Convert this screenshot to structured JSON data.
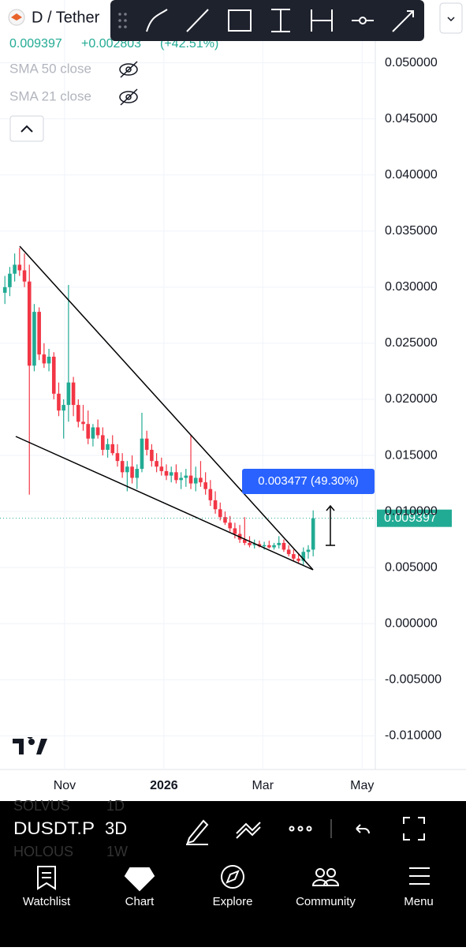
{
  "header": {
    "symbol": "D / Tether",
    "change": "+0.002803",
    "change_pct": "(+42.51%)",
    "indicators": [
      "SMA 50 close",
      "SMA 21 close"
    ]
  },
  "chart_data": {
    "type": "candlestick",
    "last_price": 0.009397,
    "measure_label": "0.003477 (49.30%)",
    "up_color": "#22ab94",
    "down_color": "#f23645",
    "grid": true,
    "ylim": [
      -0.013,
      0.0556
    ],
    "yticks": [
      {
        "value": 0.05,
        "label": "0.050000"
      },
      {
        "value": 0.045,
        "label": "0.045000"
      },
      {
        "value": 0.04,
        "label": "0.040000"
      },
      {
        "value": 0.035,
        "label": "0.035000"
      },
      {
        "value": 0.03,
        "label": "0.030000"
      },
      {
        "value": 0.025,
        "label": "0.025000"
      },
      {
        "value": 0.02,
        "label": "0.020000"
      },
      {
        "value": 0.015,
        "label": "0.015000"
      },
      {
        "value": 0.01,
        "label": "0.010000"
      },
      {
        "value": 0.005,
        "label": "0.005000"
      },
      {
        "value": 0,
        "label": "0.000000"
      },
      {
        "value": -0.005,
        "label": "-0.005000"
      },
      {
        "value": -0.01,
        "label": "-0.010000"
      }
    ],
    "xlim": [
      -1,
      75.7
    ],
    "xticks": [
      {
        "value": 12.2,
        "label": "Nov"
      },
      {
        "value": 32.5,
        "label": "2026"
      },
      {
        "value": 52.7,
        "label": "Mar"
      },
      {
        "value": 73,
        "label": "May"
      }
    ],
    "ohlc": [
      [
        0.0295,
        0.031,
        0.0285,
        0.03
      ],
      [
        0.03,
        0.0318,
        0.0292,
        0.0312
      ],
      [
        0.0312,
        0.033,
        0.0305,
        0.032
      ],
      [
        0.032,
        0.0335,
        0.031,
        0.0315
      ],
      [
        0.0315,
        0.033,
        0.03,
        0.0305
      ],
      [
        0.0305,
        0.032,
        0.0115,
        0.023
      ],
      [
        0.023,
        0.0285,
        0.0225,
        0.0278
      ],
      [
        0.0278,
        0.0282,
        0.0235,
        0.024
      ],
      [
        0.024,
        0.025,
        0.0228,
        0.0232
      ],
      [
        0.0232,
        0.0245,
        0.0225,
        0.0238
      ],
      [
        0.0238,
        0.0242,
        0.02,
        0.0205
      ],
      [
        0.0205,
        0.0215,
        0.0185,
        0.019
      ],
      [
        0.019,
        0.02,
        0.0165,
        0.0195
      ],
      [
        0.0195,
        0.0302,
        0.018,
        0.0215
      ],
      [
        0.0215,
        0.022,
        0.0185,
        0.0195
      ],
      [
        0.0195,
        0.02,
        0.0175,
        0.018
      ],
      [
        0.018,
        0.0195,
        0.0172,
        0.0178
      ],
      [
        0.0178,
        0.019,
        0.016,
        0.0165
      ],
      [
        0.0165,
        0.0178,
        0.0158,
        0.0175
      ],
      [
        0.0175,
        0.0182,
        0.0165,
        0.0168
      ],
      [
        0.0168,
        0.0175,
        0.015,
        0.0155
      ],
      [
        0.0155,
        0.0165,
        0.0148,
        0.016
      ],
      [
        0.016,
        0.0168,
        0.015,
        0.0152
      ],
      [
        0.0152,
        0.016,
        0.014,
        0.0145
      ],
      [
        0.0145,
        0.0152,
        0.013,
        0.0135
      ],
      [
        0.0135,
        0.0145,
        0.0118,
        0.014
      ],
      [
        0.014,
        0.015,
        0.0125,
        0.013
      ],
      [
        0.013,
        0.0142,
        0.012,
        0.0138
      ],
      [
        0.0138,
        0.0188,
        0.0135,
        0.0165
      ],
      [
        0.0165,
        0.0172,
        0.015,
        0.0155
      ],
      [
        0.0155,
        0.016,
        0.014,
        0.0145
      ],
      [
        0.0145,
        0.0152,
        0.0135,
        0.014
      ],
      [
        0.014,
        0.0148,
        0.0132,
        0.0136
      ],
      [
        0.0136,
        0.0142,
        0.0128,
        0.0132
      ],
      [
        0.0132,
        0.014,
        0.0126,
        0.0135
      ],
      [
        0.0135,
        0.0142,
        0.0125,
        0.0128
      ],
      [
        0.0128,
        0.0135,
        0.012,
        0.013
      ],
      [
        0.013,
        0.0138,
        0.0122,
        0.0132
      ],
      [
        0.0132,
        0.0168,
        0.012,
        0.0125
      ],
      [
        0.0125,
        0.014,
        0.0118,
        0.013
      ],
      [
        0.013,
        0.0145,
        0.0122,
        0.0126
      ],
      [
        0.0126,
        0.0135,
        0.0115,
        0.012
      ],
      [
        0.012,
        0.0128,
        0.0105,
        0.011
      ],
      [
        0.011,
        0.0118,
        0.0098,
        0.0102
      ],
      [
        0.0102,
        0.0108,
        0.0092,
        0.0095
      ],
      [
        0.0095,
        0.01,
        0.0088,
        0.009
      ],
      [
        0.009,
        0.0096,
        0.0082,
        0.0085
      ],
      [
        0.0085,
        0.009,
        0.0076,
        0.008
      ],
      [
        0.008,
        0.0088,
        0.0072,
        0.0075
      ],
      [
        0.0075,
        0.0095,
        0.007,
        0.0072
      ],
      [
        0.0072,
        0.0078,
        0.0068,
        0.007
      ],
      [
        0.007,
        0.0075,
        0.0067,
        0.0071
      ],
      [
        0.0071,
        0.0074,
        0.0068,
        0.0069
      ],
      [
        0.0069,
        0.0073,
        0.0066,
        0.007
      ],
      [
        0.007,
        0.0074,
        0.0067,
        0.0068
      ],
      [
        0.0068,
        0.0072,
        0.0066,
        0.007
      ],
      [
        0.007,
        0.0078,
        0.0067,
        0.0072
      ],
      [
        0.0072,
        0.0075,
        0.0064,
        0.0066
      ],
      [
        0.0066,
        0.007,
        0.006,
        0.0062
      ],
      [
        0.0062,
        0.0066,
        0.0056,
        0.0058
      ],
      [
        0.0058,
        0.0062,
        0.0054,
        0.0056
      ],
      [
        0.0056,
        0.0068,
        0.0052,
        0.0064
      ],
      [
        0.0064,
        0.007,
        0.0058,
        0.006594
      ],
      [
        0.0066,
        0.0101,
        0.006,
        0.009397
      ]
    ]
  },
  "bottom_bar": {
    "symbol": "DUSDT.P",
    "interval": "3D",
    "prev_symbol": "SOLVUS",
    "next_symbol": "HOLOUS",
    "prev_interval": "1D",
    "next_interval": "1W"
  },
  "nav": {
    "items": [
      "Watchlist",
      "Chart",
      "Explore",
      "Community",
      "Menu"
    ]
  }
}
